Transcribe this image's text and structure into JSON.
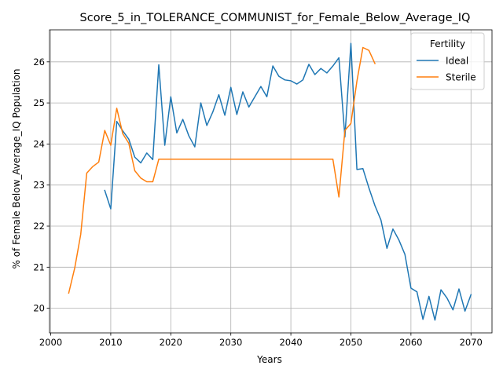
{
  "chart_data": {
    "type": "line",
    "title": "Score_5_in_TOLERANCE_COMMUNIST_for_Female_Below_Average_IQ",
    "xlabel": "Years",
    "ylabel": "% of Female Below_Average_IQ Population",
    "xlim": [
      1999.8,
      2073.5
    ],
    "ylim": [
      19.4,
      26.78
    ],
    "xticks": [
      2000,
      2010,
      2020,
      2030,
      2040,
      2050,
      2060,
      2070
    ],
    "yticks": [
      20,
      21,
      22,
      23,
      24,
      25,
      26
    ],
    "grid": true,
    "legend": {
      "title": "Fertility",
      "position": "top-right"
    },
    "series": [
      {
        "name": "Ideal",
        "color": "#1f77b4",
        "x": [
          2009,
          2010,
          2011,
          2012,
          2013,
          2014,
          2015,
          2016,
          2017,
          2018,
          2019,
          2020,
          2021,
          2022,
          2023,
          2024,
          2025,
          2026,
          2027,
          2028,
          2029,
          2030,
          2031,
          2032,
          2033,
          2034,
          2035,
          2036,
          2037,
          2038,
          2039,
          2040,
          2041,
          2042,
          2043,
          2044,
          2045,
          2046,
          2047,
          2048,
          2049,
          2050,
          2051,
          2052,
          2053,
          2054,
          2055,
          2056,
          2057,
          2058,
          2059,
          2060,
          2061,
          2062,
          2063,
          2064,
          2065,
          2066,
          2067,
          2068,
          2069,
          2070
        ],
        "values": [
          22.87,
          22.42,
          24.55,
          24.32,
          24.12,
          23.68,
          23.54,
          23.78,
          23.62,
          25.93,
          23.97,
          25.15,
          24.27,
          24.6,
          24.2,
          23.93,
          25.0,
          24.45,
          24.78,
          25.2,
          24.7,
          25.38,
          24.72,
          25.27,
          24.9,
          25.15,
          25.4,
          25.15,
          25.9,
          25.65,
          25.56,
          25.54,
          25.46,
          25.56,
          25.94,
          25.69,
          25.84,
          25.73,
          25.9,
          26.1,
          24.17,
          26.45,
          23.38,
          23.4,
          22.93,
          22.5,
          22.15,
          21.46,
          21.93,
          21.66,
          21.31,
          20.49,
          20.4,
          19.73,
          20.29,
          19.71,
          20.45,
          20.25,
          19.96,
          20.47,
          19.93,
          20.33
        ]
      },
      {
        "name": "Sterile",
        "color": "#ff7f0e",
        "x": [
          2003,
          2004,
          2005,
          2006,
          2007,
          2008,
          2009,
          2010,
          2011,
          2012,
          2013,
          2014,
          2015,
          2016,
          2017,
          2018,
          2019,
          2020,
          2021,
          2022,
          2023,
          2024,
          2025,
          2026,
          2027,
          2028,
          2029,
          2030,
          2031,
          2032,
          2033,
          2034,
          2035,
          2036,
          2037,
          2038,
          2039,
          2040,
          2041,
          2042,
          2043,
          2044,
          2045,
          2046,
          2047,
          2048,
          2049,
          2050,
          2051,
          2052,
          2053,
          2054
        ],
        "values": [
          20.37,
          20.98,
          21.8,
          23.29,
          23.45,
          23.56,
          24.33,
          23.97,
          24.87,
          24.25,
          24.02,
          23.35,
          23.17,
          23.08,
          23.08,
          23.63,
          23.63,
          23.63,
          23.63,
          23.63,
          23.63,
          23.63,
          23.63,
          23.63,
          23.63,
          23.63,
          23.63,
          23.63,
          23.63,
          23.63,
          23.63,
          23.63,
          23.63,
          23.63,
          23.63,
          23.63,
          23.63,
          23.63,
          23.63,
          23.63,
          23.63,
          23.63,
          23.63,
          23.63,
          23.63,
          22.71,
          24.33,
          24.5,
          25.53,
          26.35,
          26.28,
          25.96
        ]
      }
    ]
  }
}
